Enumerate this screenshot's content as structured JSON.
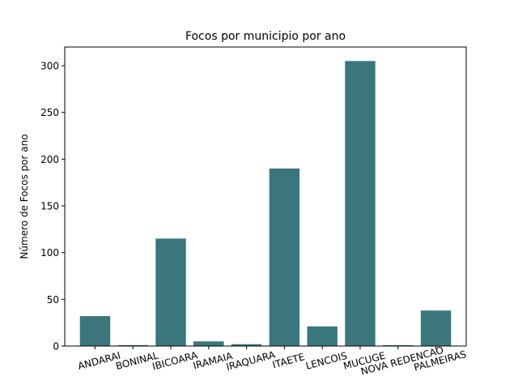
{
  "chart_data": {
    "type": "bar",
    "title": "Focos por municipio por ano",
    "xlabel": "",
    "ylabel": "Número de Focos por ano",
    "categories": [
      "ANDARAI",
      "BONINAL",
      "IBICOARA",
      "IRAMAIA",
      "IRAQUARA",
      "ITAETE",
      "LENCOIS",
      "MUCUGE",
      "NOVA REDENCAO",
      "PALMEIRAS"
    ],
    "values": [
      32,
      1,
      115,
      5,
      2,
      190,
      21,
      305,
      1,
      38
    ],
    "ylim": [
      0,
      320
    ],
    "yticks": [
      "0",
      "50",
      "100",
      "150",
      "200",
      "250",
      "300"
    ],
    "bar_color": "#3a767c",
    "grid": false,
    "legend": "none"
  }
}
